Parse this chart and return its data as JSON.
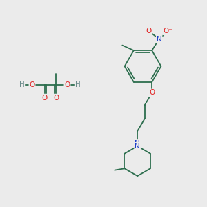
{
  "bg_color": "#ebebeb",
  "bond_color": "#2d6e4e",
  "atom_colors": {
    "O": "#e02020",
    "N": "#1a3ec8",
    "H": "#6a8a8a",
    "C": "#2d6e4e"
  },
  "lw": 1.3,
  "fontsize": 7.5
}
